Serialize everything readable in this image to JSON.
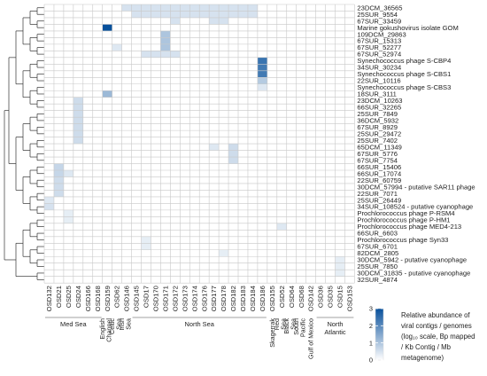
{
  "chart_data": {
    "type": "heatmap",
    "title": "",
    "xlabel": "",
    "ylabel": "",
    "columns": [
      "OSD132",
      "OSD21",
      "OSD25",
      "OSD24",
      "OSD166",
      "OSD168",
      "OSD159",
      "OSD62",
      "OSD146",
      "OSD145",
      "OSD17",
      "OSD170",
      "OSD171",
      "OSD172",
      "OSD173",
      "OSD174",
      "OSD176",
      "OSD177",
      "OSD178",
      "OSD182",
      "OSD183",
      "OSD184",
      "OSD186",
      "OSD155",
      "OSD52",
      "OSD64",
      "OSD68",
      "OSD142",
      "OSD36",
      "OSD35",
      "OSD15",
      "OSD153"
    ],
    "rows": [
      "23DCM_36565",
      "25SUR_9554",
      "67SUR_33459",
      "Marine gokushovirus isolate GOM",
      "109DCM_29863",
      "67SUR_15313",
      "67SUR_52277",
      "67SUR_52974",
      "Synechococcus phage S-CBP4",
      "34SUR_30234",
      "Synechococcus phage S-CBS1",
      "22SUR_10116",
      "Synechococcus phage S-CBS3",
      "18SUR_3111",
      "23DCM_10263",
      "66SUR_32265",
      "25SUR_7849",
      "36DCM_5932",
      "67SUR_8929",
      "25SUR_29472",
      "25SUR_7402",
      "65DCM_11349",
      "67SUR_5776",
      "67SUR_7754",
      "66SUR_15406",
      "66SUR_17074",
      "22SUR_60759",
      "30DCM_57994 - putative SAR11 phage",
      "22SUR_7071",
      "25SUR_26449",
      "34SUR_108524 - putative cyanophage",
      "Prochlorococcus phage P-RSM4",
      "Prochlorococcus phage P-HM1",
      "Prochlorococcus phage MED4-213",
      "66SUR_6603",
      "Prochlorococcus phage Syn33",
      "67SUR_6701",
      "82DCM_2805",
      "30DCM_5942 - putative cyanophage",
      "25SUR_7850",
      "30DCM_31835 - putative cyanophage",
      "32SUR_4874"
    ],
    "column_groups": [
      {
        "label": "Med Sea",
        "from": 0,
        "to": 5
      },
      {
        "label": "English Channel",
        "from": 6,
        "to": 6
      },
      {
        "label": "Celtic Sea",
        "from": 7,
        "to": 7
      },
      {
        "label": "Irish Sea",
        "from": 8,
        "to": 8
      },
      {
        "label": "North Sea",
        "from": 9,
        "to": 22
      },
      {
        "label": "Skagerrak",
        "from": 23,
        "to": 23
      },
      {
        "label": "Red Sea",
        "from": 24,
        "to": 24
      },
      {
        "label": "Black Sea",
        "from": 25,
        "to": 25
      },
      {
        "label": "South Pacific",
        "from": 26,
        "to": 26
      },
      {
        "label": "Gulf of Mexico",
        "from": 27,
        "to": 27
      },
      {
        "label": "North Atlantic",
        "from": 28,
        "to": 31
      }
    ],
    "cells": [
      [
        0,
        8,
        0.5
      ],
      [
        0,
        9,
        0.5
      ],
      [
        0,
        10,
        0.5
      ],
      [
        0,
        11,
        0.5
      ],
      [
        0,
        12,
        0.5
      ],
      [
        0,
        13,
        0.5
      ],
      [
        0,
        14,
        0.5
      ],
      [
        0,
        15,
        0.5
      ],
      [
        0,
        16,
        0.5
      ],
      [
        0,
        17,
        0.5
      ],
      [
        0,
        18,
        0.5
      ],
      [
        0,
        19,
        0.5
      ],
      [
        0,
        20,
        0.5
      ],
      [
        0,
        21,
        0.5
      ],
      [
        1,
        9,
        0.5
      ],
      [
        1,
        10,
        0.5
      ],
      [
        1,
        11,
        0.5
      ],
      [
        1,
        12,
        0.5
      ],
      [
        1,
        13,
        0.5
      ],
      [
        1,
        14,
        0.5
      ],
      [
        1,
        15,
        0.5
      ],
      [
        1,
        16,
        0.5
      ],
      [
        1,
        17,
        0.5
      ],
      [
        1,
        18,
        0.5
      ],
      [
        1,
        19,
        0.5
      ],
      [
        1,
        20,
        0.5
      ],
      [
        1,
        21,
        0.5
      ],
      [
        2,
        13,
        0.5
      ],
      [
        2,
        17,
        0.5
      ],
      [
        2,
        18,
        0.5
      ],
      [
        3,
        6,
        3.0
      ],
      [
        4,
        12,
        1.0
      ],
      [
        5,
        12,
        1.0
      ],
      [
        6,
        7,
        0.4
      ],
      [
        6,
        12,
        1.0
      ],
      [
        7,
        10,
        0.5
      ],
      [
        7,
        11,
        0.5
      ],
      [
        7,
        12,
        0.5
      ],
      [
        7,
        13,
        0.5
      ],
      [
        8,
        22,
        2.4
      ],
      [
        9,
        22,
        2.3
      ],
      [
        10,
        22,
        2.3
      ],
      [
        11,
        22,
        0.9
      ],
      [
        12,
        22,
        0.4
      ],
      [
        13,
        6,
        1.2
      ],
      [
        14,
        3,
        0.6
      ],
      [
        15,
        3,
        0.6
      ],
      [
        16,
        3,
        0.6
      ],
      [
        17,
        3,
        0.6
      ],
      [
        18,
        3,
        0.6
      ],
      [
        19,
        3,
        0.6
      ],
      [
        20,
        3,
        0.6
      ],
      [
        21,
        17,
        0.4
      ],
      [
        21,
        19,
        0.6
      ],
      [
        22,
        19,
        0.6
      ],
      [
        23,
        19,
        0.6
      ],
      [
        24,
        1,
        0.7
      ],
      [
        25,
        1,
        0.7
      ],
      [
        25,
        2,
        0.4
      ],
      [
        26,
        1,
        0.6
      ],
      [
        27,
        1,
        0.6
      ],
      [
        28,
        1,
        0.6
      ],
      [
        29,
        0,
        0.4
      ],
      [
        30,
        0,
        0.5
      ],
      [
        31,
        2,
        0.3
      ],
      [
        32,
        2,
        0.3
      ],
      [
        33,
        24,
        0.4
      ],
      [
        35,
        10,
        0.3
      ],
      [
        36,
        10,
        0.3
      ],
      [
        37,
        18,
        0.3
      ],
      [
        38,
        30,
        0.3
      ],
      [
        39,
        30,
        0.3
      ],
      [
        40,
        30,
        0.3
      ]
    ],
    "color_scale": {
      "min": 0,
      "max": 3,
      "ticks": [
        0,
        1,
        2,
        3
      ],
      "low_color": "#ffffff",
      "high_color": "#08519c"
    },
    "legend": {
      "title_lines": [
        "Relative abundance of",
        "viral contigs / genomes",
        "(log₁₀ scale, Bp mapped",
        "/ Kb Contig / Mb",
        "metagenome)"
      ],
      "placement": "bottom-right"
    },
    "row_dendrogram": true,
    "grid": true
  }
}
